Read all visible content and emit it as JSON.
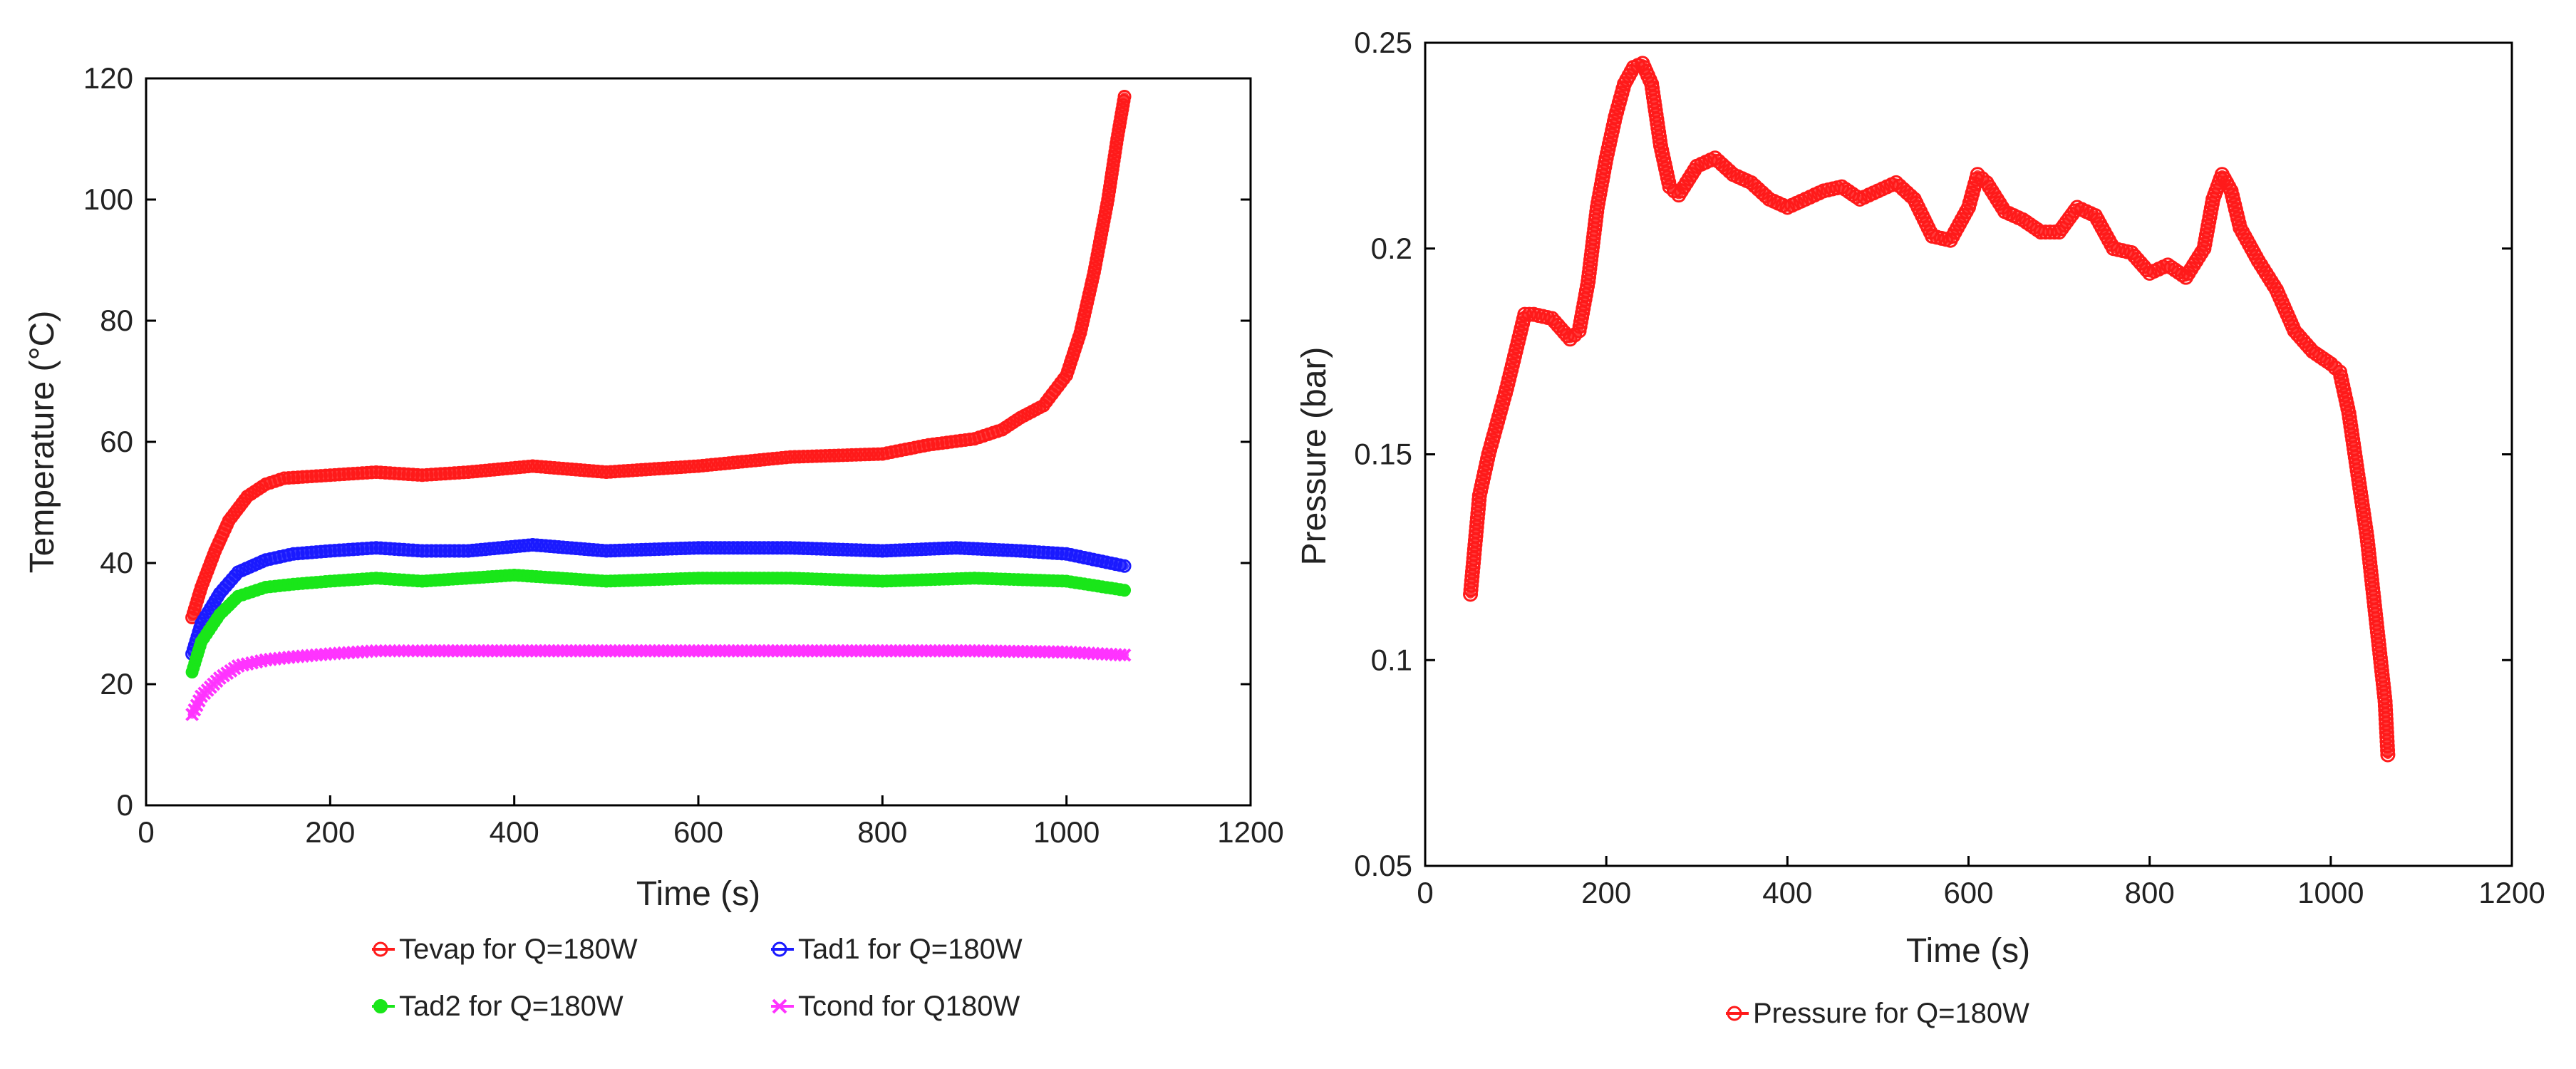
{
  "chart_data": [
    {
      "type": "scatter",
      "title": "",
      "xlabel": "Time (s)",
      "ylabel": "Temperature (°C)",
      "xlim": [
        0,
        1200
      ],
      "ylim": [
        0,
        120
      ],
      "xticks": [
        "0",
        "200",
        "400",
        "600",
        "800",
        "1000",
        "1200"
      ],
      "yticks": [
        "0",
        "20",
        "40",
        "60",
        "80",
        "100",
        "120"
      ],
      "legend_position": "bottom",
      "series": [
        {
          "name": "Tevap for Q=180W",
          "color": "#ff1a1a",
          "marker": "circle",
          "x": [
            50,
            60,
            75,
            90,
            110,
            130,
            150,
            200,
            250,
            300,
            350,
            420,
            500,
            600,
            700,
            800,
            850,
            900,
            930,
            950,
            975,
            1000,
            1015,
            1030,
            1045,
            1055,
            1063
          ],
          "y": [
            31,
            36,
            42,
            47,
            51,
            53,
            54,
            54.5,
            55,
            54.5,
            55,
            56,
            55,
            56,
            57.5,
            58,
            59.5,
            60.5,
            62,
            64,
            66,
            71,
            78,
            88,
            100,
            110,
            117
          ]
        },
        {
          "name": "Tad1 for Q=180W",
          "color": "#1a1aff",
          "marker": "circle",
          "x": [
            50,
            60,
            80,
            100,
            130,
            160,
            200,
            250,
            300,
            350,
            420,
            500,
            600,
            700,
            800,
            880,
            950,
            1000,
            1063
          ],
          "y": [
            25,
            30,
            35,
            38.5,
            40.5,
            41.5,
            42,
            42.5,
            42,
            42,
            43,
            42,
            42.5,
            42.5,
            42,
            42.5,
            42,
            41.5,
            39.5
          ]
        },
        {
          "name": "Tad2 for Q=180W",
          "color": "#19e619",
          "marker": "dot",
          "x": [
            50,
            60,
            80,
            100,
            130,
            160,
            200,
            250,
            300,
            400,
            500,
            600,
            700,
            800,
            900,
            1000,
            1063
          ],
          "y": [
            22,
            27,
            31.5,
            34.5,
            36,
            36.5,
            37,
            37.5,
            37,
            38,
            37,
            37.5,
            37.5,
            37,
            37.5,
            37,
            35.5
          ]
        },
        {
          "name": "Tcond for Q180W",
          "color": "#ff33ff",
          "marker": "x",
          "x": [
            50,
            60,
            80,
            100,
            130,
            160,
            200,
            250,
            300,
            400,
            500,
            600,
            700,
            800,
            900,
            1000,
            1063
          ],
          "y": [
            15,
            18,
            21,
            23,
            24,
            24.5,
            25,
            25.5,
            25.5,
            25.5,
            25.5,
            25.5,
            25.5,
            25.5,
            25.5,
            25.3,
            24.8
          ]
        }
      ]
    },
    {
      "type": "scatter",
      "title": "",
      "xlabel": "Time (s)",
      "ylabel": "Pressure (bar)",
      "xlim": [
        0,
        1200
      ],
      "ylim": [
        0.05,
        0.25
      ],
      "xticks": [
        "0",
        "200",
        "400",
        "600",
        "800",
        "1000",
        "1200"
      ],
      "yticks": [
        "0.05",
        "0.1",
        "0.15",
        "0.2",
        "0.25"
      ],
      "legend_position": "bottom",
      "series": [
        {
          "name": "Pressure for Q=180W",
          "color": "#ff1a1a",
          "marker": "circle",
          "x": [
            50,
            55,
            60,
            70,
            80,
            90,
            100,
            110,
            120,
            140,
            160,
            170,
            180,
            190,
            200,
            210,
            220,
            230,
            240,
            250,
            260,
            270,
            280,
            300,
            320,
            340,
            360,
            380,
            400,
            420,
            440,
            460,
            480,
            500,
            520,
            540,
            560,
            580,
            600,
            610,
            620,
            640,
            660,
            680,
            700,
            720,
            740,
            760,
            780,
            800,
            820,
            840,
            860,
            870,
            880,
            890,
            900,
            920,
            940,
            960,
            980,
            1000,
            1010,
            1020,
            1030,
            1040,
            1050,
            1060,
            1063
          ],
          "y": [
            0.116,
            0.128,
            0.14,
            0.15,
            0.158,
            0.166,
            0.175,
            0.184,
            0.184,
            0.183,
            0.178,
            0.18,
            0.192,
            0.21,
            0.222,
            0.232,
            0.24,
            0.244,
            0.245,
            0.24,
            0.225,
            0.215,
            0.213,
            0.22,
            0.222,
            0.218,
            0.216,
            0.212,
            0.21,
            0.212,
            0.214,
            0.215,
            0.212,
            0.214,
            0.216,
            0.212,
            0.203,
            0.202,
            0.21,
            0.218,
            0.216,
            0.209,
            0.207,
            0.204,
            0.204,
            0.21,
            0.208,
            0.2,
            0.199,
            0.194,
            0.196,
            0.193,
            0.2,
            0.212,
            0.218,
            0.214,
            0.205,
            0.197,
            0.19,
            0.18,
            0.175,
            0.172,
            0.17,
            0.16,
            0.145,
            0.13,
            0.11,
            0.09,
            0.077
          ]
        }
      ]
    }
  ]
}
